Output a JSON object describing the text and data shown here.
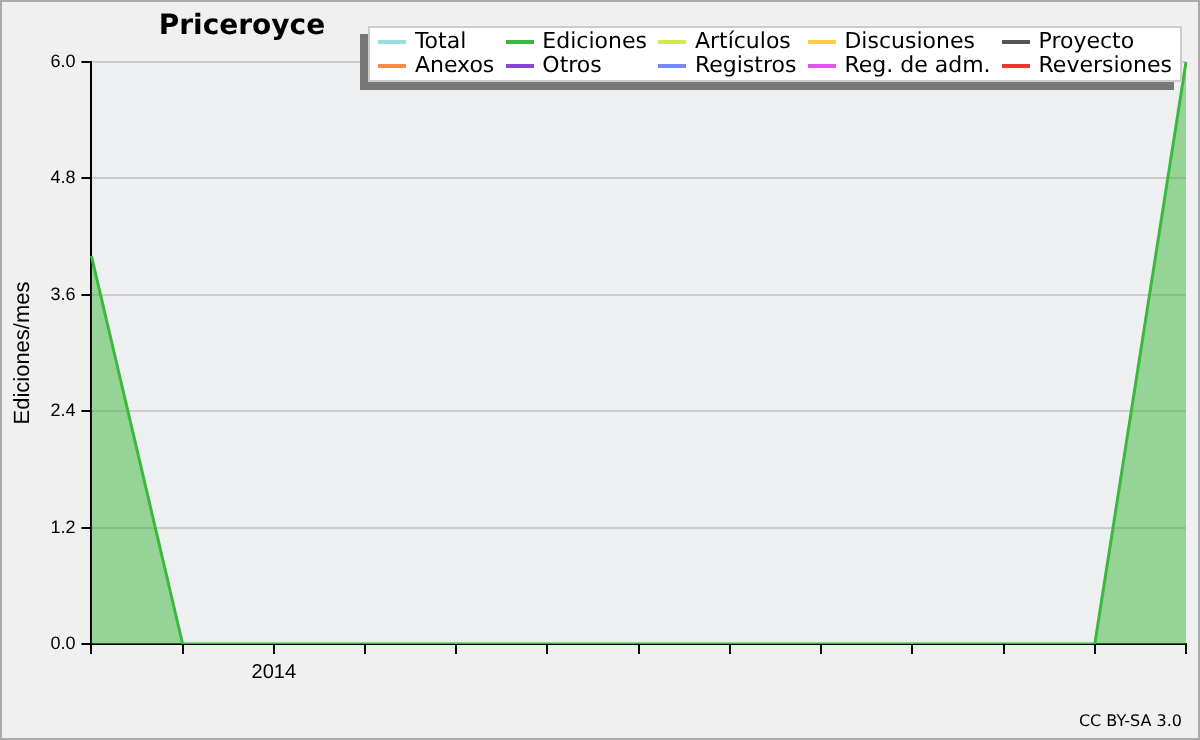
{
  "chart_data": {
    "type": "area",
    "title": "Priceroyce",
    "ylabel": "Ediciones/mes",
    "categories": [
      null,
      null,
      "2014",
      null,
      null,
      null,
      null,
      null,
      null,
      null,
      null,
      null,
      null
    ],
    "ylim": [
      0,
      6
    ],
    "yticks": [
      {
        "value": 0,
        "label": "0.0"
      },
      {
        "value": 1.2,
        "label": "1.2"
      },
      {
        "value": 2.4,
        "label": "2.4"
      },
      {
        "value": 3.6,
        "label": "3.6"
      },
      {
        "value": 4.8,
        "label": "4.8"
      },
      {
        "value": 6,
        "label": "6.0"
      }
    ],
    "grid": "y",
    "legend": "top right",
    "series": [
      {
        "name": "Total",
        "color": "#99dddd",
        "values": [
          null,
          null,
          null,
          null,
          null,
          null,
          null,
          null,
          null,
          null,
          null,
          null,
          null
        ]
      },
      {
        "name": "Ediciones",
        "color": "#3cb83c",
        "values": [
          4,
          0,
          0,
          0,
          0,
          0,
          0,
          0,
          0,
          0,
          0,
          0,
          6
        ]
      },
      {
        "name": "Artículos",
        "color": "#ccee44",
        "values": [
          null,
          null,
          null,
          null,
          null,
          null,
          null,
          null,
          null,
          null,
          null,
          null,
          null
        ]
      },
      {
        "name": "Discusiones",
        "color": "#ffcc44",
        "values": [
          null,
          null,
          null,
          null,
          null,
          null,
          null,
          null,
          null,
          null,
          null,
          null,
          null
        ]
      },
      {
        "name": "Proyecto",
        "color": "#555555",
        "values": [
          null,
          null,
          null,
          null,
          null,
          null,
          null,
          null,
          null,
          null,
          null,
          null,
          null
        ]
      },
      {
        "name": "Anexos",
        "color": "#ff8844",
        "values": [
          null,
          null,
          null,
          null,
          null,
          null,
          null,
          null,
          null,
          null,
          null,
          null,
          null
        ]
      },
      {
        "name": "Otros",
        "color": "#8844dd",
        "values": [
          null,
          null,
          null,
          null,
          null,
          null,
          null,
          null,
          null,
          null,
          null,
          null,
          null
        ]
      },
      {
        "name": "Registros",
        "color": "#7788ff",
        "values": [
          null,
          null,
          null,
          null,
          null,
          null,
          null,
          null,
          null,
          null,
          null,
          null,
          null
        ]
      },
      {
        "name": "Reg. de adm.",
        "color": "#dd55ee",
        "values": [
          null,
          null,
          null,
          null,
          null,
          null,
          null,
          null,
          null,
          null,
          null,
          null,
          null
        ]
      },
      {
        "name": "Reversiones",
        "color": "#ee3333",
        "values": [
          null,
          null,
          null,
          null,
          null,
          null,
          null,
          null,
          null,
          null,
          null,
          null,
          null
        ]
      }
    ],
    "annotations": [
      "CC BY-SA 3.0"
    ]
  }
}
